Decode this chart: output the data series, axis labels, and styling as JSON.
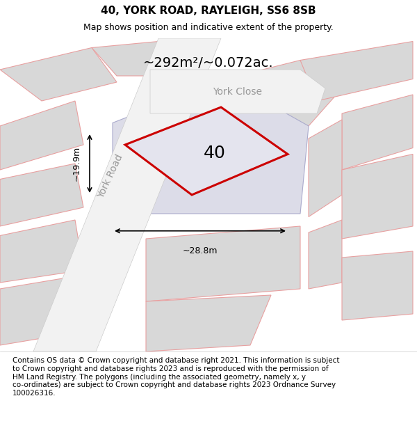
{
  "title": "40, YORK ROAD, RAYLEIGH, SS6 8SB",
  "subtitle": "Map shows position and indicative extent of the property.",
  "footer_line1": "Contains OS data © Crown copyright and database right 2021. This information is subject",
  "footer_line2": "to Crown copyright and database rights 2023 and is reproduced with the permission of",
  "footer_line3": "HM Land Registry. The polygons (including the associated geometry, namely x, y",
  "footer_line4": "co-ordinates) are subject to Crown copyright and database rights 2023 Ordnance Survey",
  "footer_line5": "100026316.",
  "area_text": "~292m²/~0.072ac.",
  "number_label": "40",
  "width_label": "~28.8m",
  "height_label": "~19.9m",
  "york_road_label": "York Road",
  "york_close_label": "York Close",
  "map_bg": "#e8e8e8",
  "building_fill": "#d8d8d8",
  "building_stroke": "#e8a0a0",
  "parcel_fill": "#dcdce8",
  "parcel_stroke": "#aaaacc",
  "highlight_fill": "#e4e4ee",
  "highlight_stroke": "#cc0000",
  "road_fill": "#f2f2f2",
  "road_stroke": "#cccccc",
  "title_fontsize": 11,
  "subtitle_fontsize": 9,
  "footer_fontsize": 7.5,
  "area_fontsize": 14,
  "label_fontsize": 18,
  "road_label_fontsize": 10
}
